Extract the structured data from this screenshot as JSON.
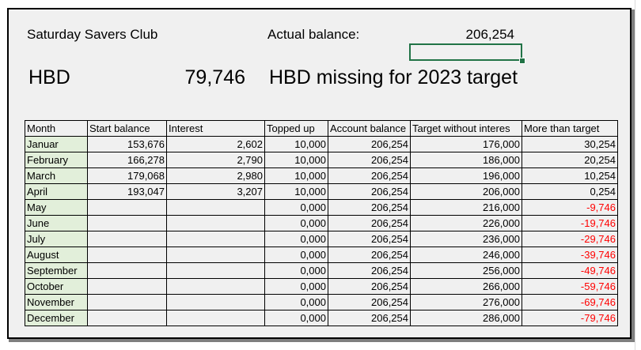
{
  "header": {
    "club_name": "Saturday Savers Club",
    "actual_balance_label": "Actual balance:",
    "actual_balance_value": "206,254",
    "hbd_label": "HBD",
    "hbd_value": "79,746",
    "hbd_missing_label": "HBD missing for 2023 target"
  },
  "table": {
    "columns": [
      "Month",
      "Start balance",
      "Interest",
      "Topped up",
      "Account balance",
      "Target without interes",
      "More than target"
    ],
    "rows": [
      [
        "Januar",
        "153,676",
        "2,602",
        "10,000",
        "206,254",
        "176,000",
        "30,254"
      ],
      [
        "February",
        "166,278",
        "2,790",
        "10,000",
        "206,254",
        "186,000",
        "20,254"
      ],
      [
        "March",
        "179,068",
        "2,980",
        "10,000",
        "206,254",
        "196,000",
        "10,254"
      ],
      [
        "April",
        "193,047",
        "3,207",
        "10,000",
        "206,254",
        "206,000",
        "0,254"
      ],
      [
        "May",
        "",
        "",
        "0,000",
        "206,254",
        "216,000",
        "-9,746"
      ],
      [
        "June",
        "",
        "",
        "0,000",
        "206,254",
        "226,000",
        "-19,746"
      ],
      [
        "July",
        "",
        "",
        "0,000",
        "206,254",
        "236,000",
        "-29,746"
      ],
      [
        "August",
        "",
        "",
        "0,000",
        "206,254",
        "246,000",
        "-39,746"
      ],
      [
        "September",
        "",
        "",
        "0,000",
        "206,254",
        "256,000",
        "-49,746"
      ],
      [
        "October",
        "",
        "",
        "0,000",
        "206,254",
        "266,000",
        "-59,746"
      ],
      [
        "November",
        "",
        "",
        "0,000",
        "206,254",
        "276,000",
        "-69,746"
      ],
      [
        "December",
        "",
        "",
        "0,000",
        "206,254",
        "286,000",
        "-79,746"
      ]
    ]
  },
  "colors": {
    "negative": "#ff0000",
    "month_fill": "#e2efda",
    "selection": "#217346",
    "sheet_background": "#f0f0f0"
  }
}
